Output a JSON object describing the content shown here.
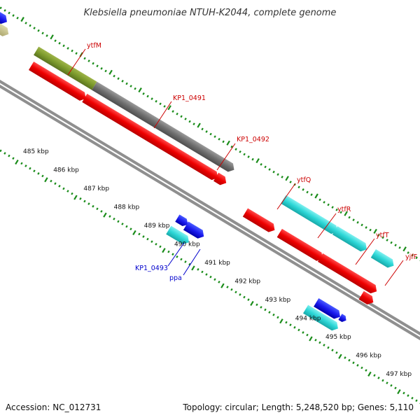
{
  "title": "Klebsiella pneumoniae NTUH-K2044, complete genome",
  "footer": {
    "accession": "Accession: NC_012731",
    "topology": "Topology: circular; Length: 5,248,520 bp; Genes: 5,110"
  },
  "colors": {
    "backbone": "#8f8f8f",
    "tick": "#1a8c1a",
    "label_red": "#cc0000",
    "label_blue": "#0000cc"
  },
  "tick_labels": [
    "485 kbp",
    "486 kbp",
    "487 kbp",
    "488 kbp",
    "489 kbp",
    "490 kbp",
    "491 kbp",
    "492 kbp",
    "493 kbp",
    "494 kbp",
    "495 kbp",
    "496 kbp",
    "497 kbp"
  ],
  "gene_labels": [
    {
      "text": "ytfM",
      "color": "#cc0000"
    },
    {
      "text": "KP1_0491",
      "color": "#cc0000"
    },
    {
      "text": "KP1_0492",
      "color": "#cc0000"
    },
    {
      "text": "ytfQ",
      "color": "#cc0000"
    },
    {
      "text": "ytfR",
      "color": "#cc0000"
    },
    {
      "text": "ytfT",
      "color": "#cc0000"
    },
    {
      "text": "yjfF",
      "color": "#cc0000"
    },
    {
      "text": "KP1_0493",
      "color": "#0000cc"
    },
    {
      "text": "ppa",
      "color": "#0000cc"
    }
  ],
  "features": [
    {
      "name": "ytfM",
      "color": "olive"
    },
    {
      "name": "KP1_0491",
      "color": "grey"
    },
    {
      "name": "KP1_0492",
      "color": "grey"
    },
    {
      "name": "ytfQ",
      "color": "cyan"
    },
    {
      "name": "ytfR",
      "color": "cyan"
    },
    {
      "name": "ytfT",
      "color": "cyan"
    },
    {
      "name": "yjfF",
      "color": "cyan"
    },
    {
      "name": "KP1_0493",
      "color": "blue"
    },
    {
      "name": "ppa",
      "color": "cyan"
    }
  ]
}
